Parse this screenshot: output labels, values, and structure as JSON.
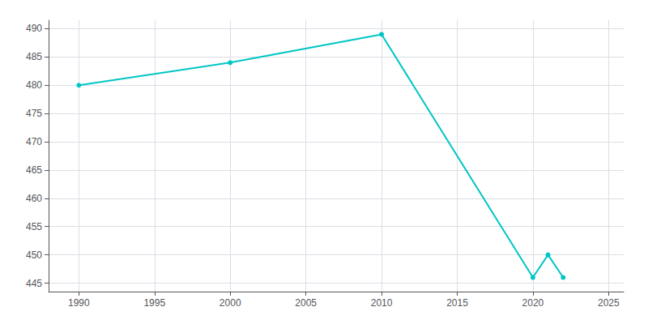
{
  "chart_data": {
    "type": "line",
    "x": [
      1990,
      2000,
      2010,
      2020,
      2021,
      2022
    ],
    "values": [
      480,
      484,
      489,
      446,
      450,
      446
    ],
    "color": "#00C5C5",
    "marker": "circle",
    "xlim": [
      1988,
      2026
    ],
    "xticks": [
      1990,
      1995,
      2000,
      2005,
      2010,
      2015,
      2020,
      2025
    ],
    "ylim": [
      443.5,
      491.5
    ],
    "yticks": [
      445,
      450,
      455,
      460,
      465,
      470,
      475,
      480,
      485,
      490
    ],
    "grid": true
  }
}
